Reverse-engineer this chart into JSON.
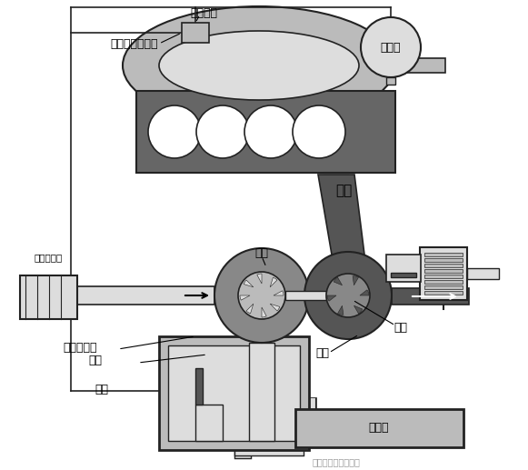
{
  "bg_color": "#ffffff",
  "fig_width": 5.81,
  "fig_height": 5.17,
  "dpi": 100,
  "labels": {
    "vacuum_line": "真空管路",
    "vacuum_tank": "真空罐",
    "bypass_solenoid": "进气旁通电磁阀",
    "exhaust": "排气",
    "pump_wheel": "泵轮",
    "turbine": "涡轮",
    "valve": "阀门",
    "air_filter": "空气滤清器",
    "bypass_valve": "进气旁通阀",
    "diaphragm": "膜片",
    "spring": "弹簧",
    "intercooler": "中冷器",
    "watermark": "汽车维修技术与知识"
  },
  "colors": {
    "dark_gray": "#555555",
    "mid_gray": "#888888",
    "light_gray": "#bbbbbb",
    "very_light_gray": "#dddddd",
    "engine_gray": "#666666",
    "line_color": "#222222",
    "white": "#ffffff",
    "black": "#000000"
  }
}
